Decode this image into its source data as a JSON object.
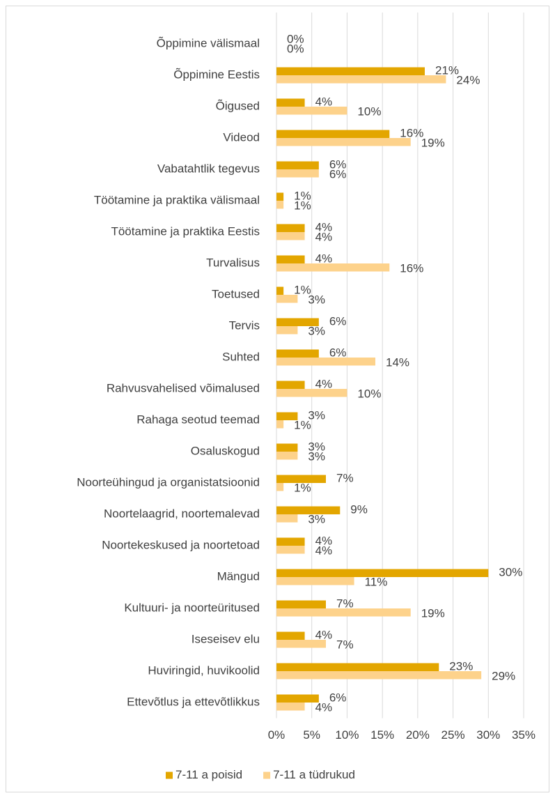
{
  "chart_data": {
    "type": "hbar",
    "categories": [
      "Õppimine välismaal",
      "Õppimine Eestis",
      "Õigused",
      "Videod",
      "Vabatahtlik tegevus",
      "Töötamine ja praktika välismaal",
      "Töötamine ja praktika Eestis",
      "Turvalisus",
      "Toetused",
      "Tervis",
      "Suhted",
      "Rahvusvahelised võimalused",
      "Rahaga seotud teemad",
      "Osaluskogud",
      "Noorteühingud ja organistatsioonid",
      "Noortelaagrid, noortemalevad",
      "Noortekeskused ja noortetoad",
      "Mängud",
      "Kultuuri- ja noorteüritused",
      "Iseseisev elu",
      "Huviringid, huvikoolid",
      "Ettevõtlus ja ettevõtlikkus"
    ],
    "series": [
      {
        "name": "7-11 a poisid",
        "color": "#e3a600",
        "values": [
          0,
          21,
          4,
          16,
          6,
          1,
          4,
          4,
          1,
          6,
          6,
          4,
          3,
          3,
          7,
          9,
          4,
          30,
          7,
          4,
          23,
          6
        ],
        "value_labels": [
          "0%",
          "21%",
          "4%",
          "16%",
          "6%",
          "1%",
          "4%",
          "4%",
          "1%",
          "6%",
          "6%",
          "4%",
          "3%",
          "3%",
          "7%",
          "9%",
          "4%",
          "30%",
          "7%",
          "4%",
          "23%",
          "6%"
        ]
      },
      {
        "name": "7-11 a tüdrukud",
        "color": "#fdd28b",
        "values": [
          0,
          24,
          10,
          19,
          6,
          1,
          4,
          16,
          3,
          3,
          14,
          10,
          1,
          3,
          1,
          3,
          4,
          11,
          19,
          7,
          29,
          4
        ],
        "value_labels": [
          "0%",
          "24%",
          "10%",
          "19%",
          "6%",
          "1%",
          "4%",
          "16%",
          "3%",
          "3%",
          "14%",
          "10%",
          "1%",
          "3%",
          "1%",
          "3%",
          "4%",
          "11%",
          "19%",
          "7%",
          "29%",
          "4%"
        ]
      }
    ],
    "xlim": [
      0,
      35
    ],
    "xticks": [
      {
        "value": 0,
        "label": "0%"
      },
      {
        "value": 5,
        "label": "5%"
      },
      {
        "value": 10,
        "label": "10%"
      },
      {
        "value": 15,
        "label": "15%"
      },
      {
        "value": 20,
        "label": "20%"
      },
      {
        "value": 25,
        "label": "25%"
      },
      {
        "value": 30,
        "label": "30%"
      },
      {
        "value": 35,
        "label": "35%"
      }
    ],
    "grid": true,
    "legend": "bottom"
  }
}
